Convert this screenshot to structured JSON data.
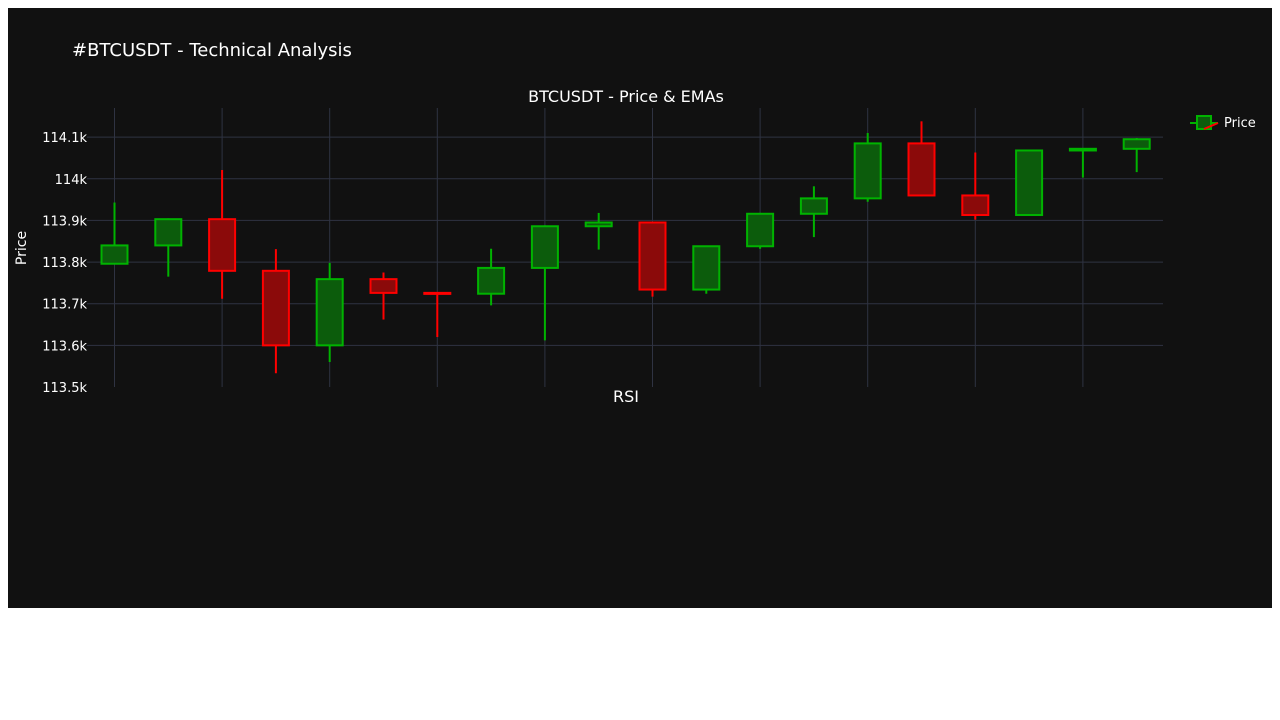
{
  "page": {
    "title": "#BTCUSDT - Technical Analysis"
  },
  "colors": {
    "background": "#111111",
    "grid": "#2f3342",
    "increasing_line": "#00b300",
    "increasing_fill": "#0c5c0c",
    "decreasing_line": "#ff0000",
    "decreasing_fill": "#8b0a0a",
    "text": "#ffffff"
  },
  "chart_data": [
    {
      "type": "candlestick",
      "title": "BTCUSDT - Price & EMAs",
      "ylabel": "Price",
      "ylim": [
        113500,
        114170
      ],
      "yticks": [
        113500,
        113600,
        113700,
        113800,
        113900,
        114000,
        114100
      ],
      "ytick_labels": [
        "113.5k",
        "113.6k",
        "113.7k",
        "113.8k",
        "113.9k",
        "114k",
        "114.1k"
      ],
      "grid": true,
      "legend_position": "top-right",
      "series": [
        {
          "name": "Price",
          "candles": [
            {
              "open": 113796,
              "high": 113943,
              "low": 113796,
              "close": 113840
            },
            {
              "open": 113840,
              "high": 113905,
              "low": 113765,
              "close": 113903
            },
            {
              "open": 113903,
              "high": 114021,
              "low": 113712,
              "close": 113779
            },
            {
              "open": 113779,
              "high": 113831,
              "low": 113533,
              "close": 113600
            },
            {
              "open": 113600,
              "high": 113798,
              "low": 113560,
              "close": 113759
            },
            {
              "open": 113759,
              "high": 113775,
              "low": 113662,
              "close": 113726
            },
            {
              "open": 113726,
              "high": 113726,
              "low": 113620,
              "close": 113724
            },
            {
              "open": 113724,
              "high": 113832,
              "low": 113696,
              "close": 113786
            },
            {
              "open": 113786,
              "high": 113888,
              "low": 113612,
              "close": 113886
            },
            {
              "open": 113886,
              "high": 113918,
              "low": 113830,
              "close": 113895
            },
            {
              "open": 113895,
              "high": 113895,
              "low": 113717,
              "close": 113734
            },
            {
              "open": 113734,
              "high": 113838,
              "low": 113724,
              "close": 113838
            },
            {
              "open": 113838,
              "high": 113918,
              "low": 113832,
              "close": 113916
            },
            {
              "open": 113916,
              "high": 113982,
              "low": 113860,
              "close": 113953
            },
            {
              "open": 113953,
              "high": 114110,
              "low": 113945,
              "close": 114085
            },
            {
              "open": 114085,
              "high": 114138,
              "low": 113958,
              "close": 113960
            },
            {
              "open": 113960,
              "high": 114063,
              "low": 113902,
              "close": 113913
            },
            {
              "open": 113913,
              "high": 114069,
              "low": 113913,
              "close": 114068
            },
            {
              "open": 114068,
              "high": 114072,
              "low": 114003,
              "close": 114072
            },
            {
              "open": 114072,
              "high": 114098,
              "low": 114016,
              "close": 114095
            }
          ]
        }
      ]
    },
    {
      "type": "line",
      "title": "RSI",
      "series": []
    }
  ]
}
